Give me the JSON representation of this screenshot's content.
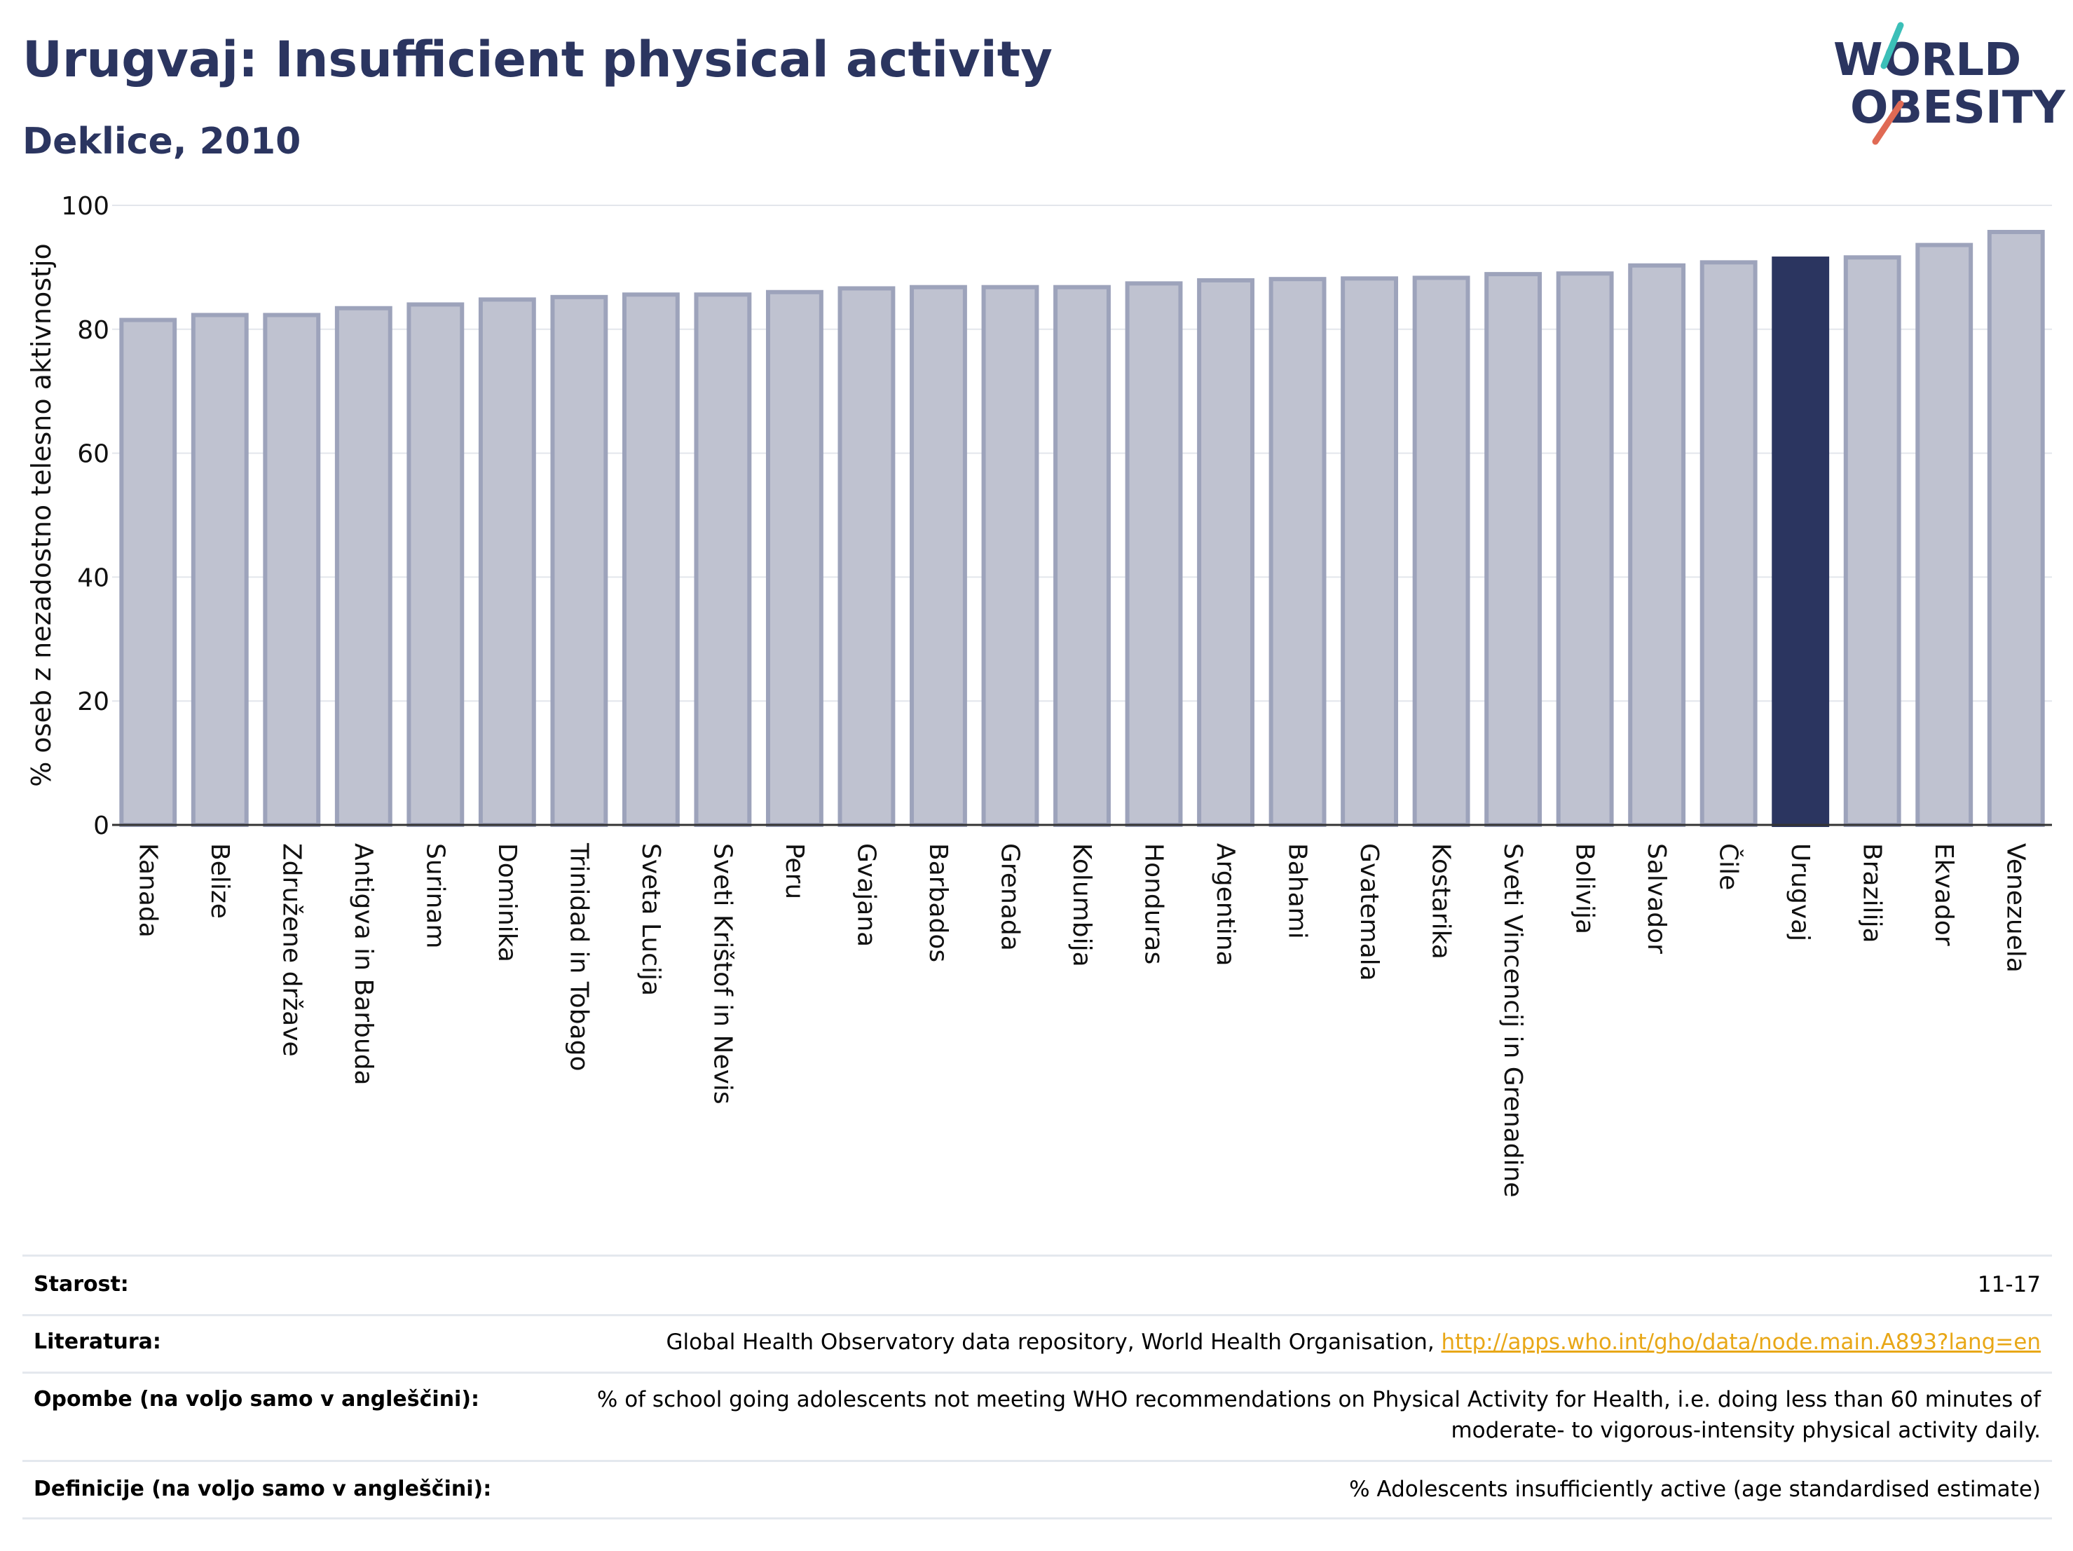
{
  "header": {
    "title": "Urugvaj: Insufficient physical activity",
    "subtitle": "Deklice, 2010"
  },
  "logo": {
    "line1": "WORLD",
    "line2": "OBESITY"
  },
  "chart_data": {
    "type": "bar",
    "title": "",
    "xlabel": "",
    "ylabel": "% oseb z nezadostno telesno aktivnostjo",
    "ylim": [
      0,
      100
    ],
    "yticks": [
      0,
      20,
      40,
      60,
      80,
      100
    ],
    "grid": true,
    "categories": [
      "Kanada",
      "Belize",
      "Združene države",
      "Antigva in Barbuda",
      "Surinam",
      "Dominika",
      "Trinidad in Tobago",
      "Sveta Lucija",
      "Sveti Krištof in Nevis",
      "Peru",
      "Gvajana",
      "Barbados",
      "Grenada",
      "Kolumbija",
      "Honduras",
      "Argentina",
      "Bahami",
      "Gvatemala",
      "Kostarika",
      "Sveti Vincencij in Grenadine",
      "Bolivija",
      "Salvador",
      "Čile",
      "Urugvaj",
      "Brazilija",
      "Ekvador",
      "Venezuela"
    ],
    "values": [
      81.5,
      82.3,
      82.3,
      83.4,
      84.0,
      84.8,
      85.2,
      85.6,
      85.6,
      86.0,
      86.6,
      86.8,
      86.8,
      86.8,
      87.4,
      87.9,
      88.1,
      88.2,
      88.3,
      88.9,
      89.0,
      90.3,
      90.8,
      91.4,
      91.6,
      93.6,
      95.7
    ],
    "highlight": "Urugvaj",
    "colors": {
      "bar": "#bfc2d0",
      "bar_border": "#9da3bb",
      "highlight": "#2b3560"
    }
  },
  "meta": {
    "age_label": "Starost:",
    "age_value": "11-17",
    "source_label": "Literatura:",
    "source_text": "Global Health Observatory data repository, World Health Organisation,",
    "source_link": "http://apps.who.int/gho/data/node.main.A893?lang=en",
    "notes_label": "Opombe (na voljo samo v angleščini):",
    "notes_line1": "% of school going adolescents not meeting WHO recommendations on Physical Activity for Health, i.e. doing less than 60 minutes of",
    "notes_line2": "moderate- to vigorous-intensity physical activity daily.",
    "definitions_label": "Definicije (na voljo samo v angleščini):",
    "definitions_value": "% Adolescents insufficiently active (age standardised estimate)"
  }
}
